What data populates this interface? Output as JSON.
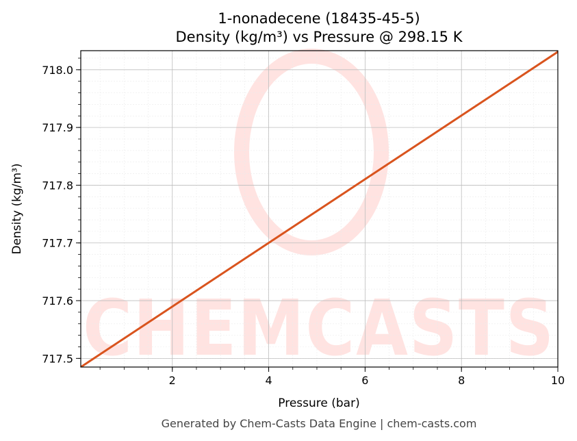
{
  "chart_data": {
    "type": "line",
    "title": "1-nonadecene (18435-45-5)",
    "subtitle": "Density (kg/m³) vs Pressure @ 298.15 K",
    "xlabel": "Pressure (bar)",
    "ylabel": "Density (kg/m³)",
    "xlim": [
      0.1,
      10
    ],
    "ylim": [
      717.485,
      718.033
    ],
    "x_ticks": [
      2,
      4,
      6,
      8,
      10
    ],
    "x_tick_labels": [
      "2",
      "4",
      "6",
      "8",
      "10"
    ],
    "y_ticks": [
      717.5,
      717.6,
      717.7,
      717.8,
      717.9,
      718.0
    ],
    "y_tick_labels": [
      "717.5",
      "717.6",
      "717.7",
      "717.8",
      "717.9",
      "718.0"
    ],
    "grid": true,
    "series": [
      {
        "color": "#d9541e",
        "x": [
          0.1,
          10
        ],
        "y": [
          717.485,
          718.031
        ]
      }
    ]
  },
  "watermark": {
    "text": "CHEMCASTS",
    "color": "#ffe3e1"
  },
  "footer": "Generated by Chem-Casts Data Engine | chem-casts.com"
}
